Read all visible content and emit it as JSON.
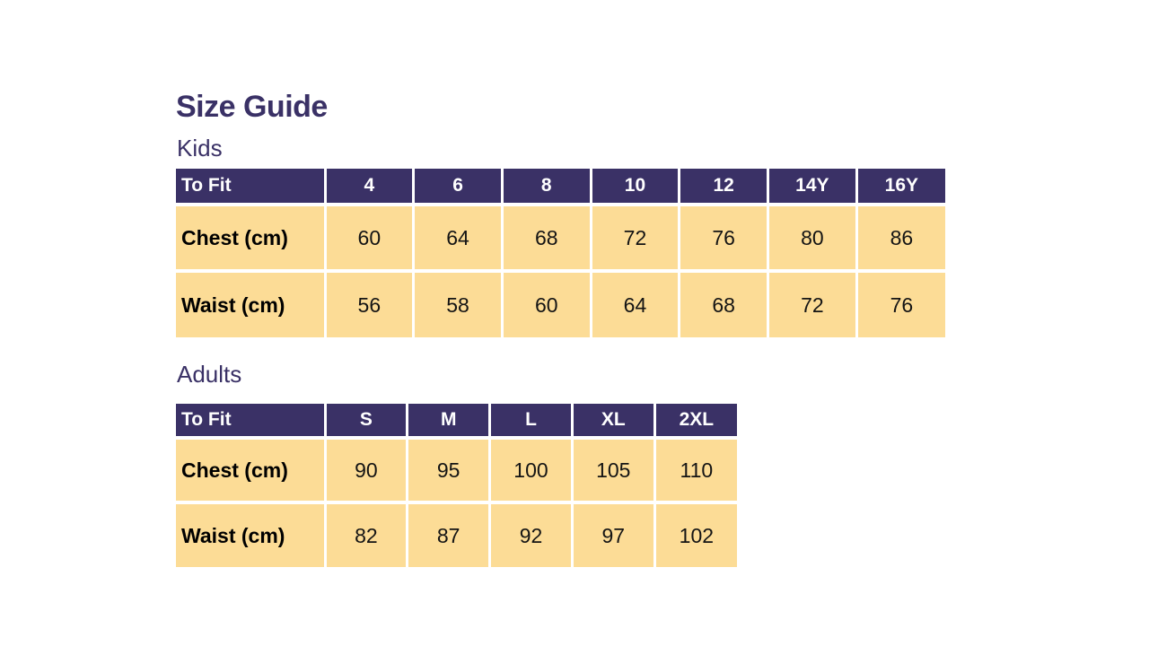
{
  "page": {
    "title": "Size Guide"
  },
  "colors": {
    "header_bg": "#3A3166",
    "header_text": "#FFFFFF",
    "body_bg": "#FCDC96",
    "body_text": "#141414",
    "heading_text": "#3A3166",
    "divider": "#FFFFFF",
    "canvas_bg": "#FFFFFF"
  },
  "sections": [
    {
      "label": "Kids",
      "table": {
        "header": [
          "To Fit",
          "4",
          "6",
          "8",
          "10",
          "12",
          "14Y",
          "16Y"
        ],
        "rows": [
          {
            "label": "Chest (cm)",
            "values": [
              "60",
              "64",
              "68",
              "72",
              "76",
              "80",
              "86"
            ]
          },
          {
            "label": "Waist (cm)",
            "values": [
              "56",
              "58",
              "60",
              "64",
              "68",
              "72",
              "76"
            ]
          }
        ]
      }
    },
    {
      "label": "Adults",
      "table": {
        "header": [
          "To Fit",
          "S",
          "M",
          "L",
          "XL",
          "2XL"
        ],
        "rows": [
          {
            "label": "Chest (cm)",
            "values": [
              "90",
              "95",
              "100",
              "105",
              "110"
            ]
          },
          {
            "label": "Waist (cm)",
            "values": [
              "82",
              "87",
              "92",
              "97",
              "102"
            ]
          }
        ]
      }
    }
  ]
}
